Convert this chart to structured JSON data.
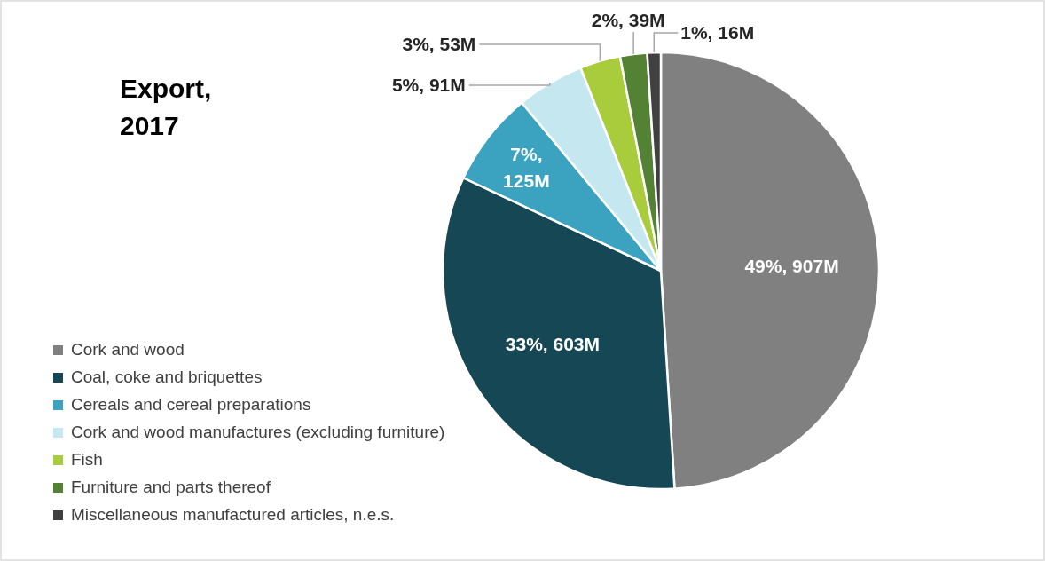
{
  "chart_data": {
    "type": "pie",
    "title": "Export, 2017",
    "categories": [
      "Cork and wood",
      "Coal, coke and briquettes",
      "Cereals and cereal preparations",
      "Cork and wood manufactures (excluding furniture)",
      "Fish",
      "Furniture and parts thereof",
      "Miscellaneous manufactured articles, n.e.s."
    ],
    "values": [
      49,
      33,
      7,
      5,
      3,
      2,
      1
    ],
    "colors": [
      "#808080",
      "#154854",
      "#3ba3c0",
      "#c5e8f0",
      "#a8cc3c",
      "#548235",
      "#404040"
    ],
    "value_labels": [
      "49%, 907M",
      "33%, 603M",
      "7%, 125M",
      "5%, 91M",
      "3%, 53M",
      "2%, 39M",
      "1%, 16M"
    ],
    "legend": "bottom left"
  }
}
